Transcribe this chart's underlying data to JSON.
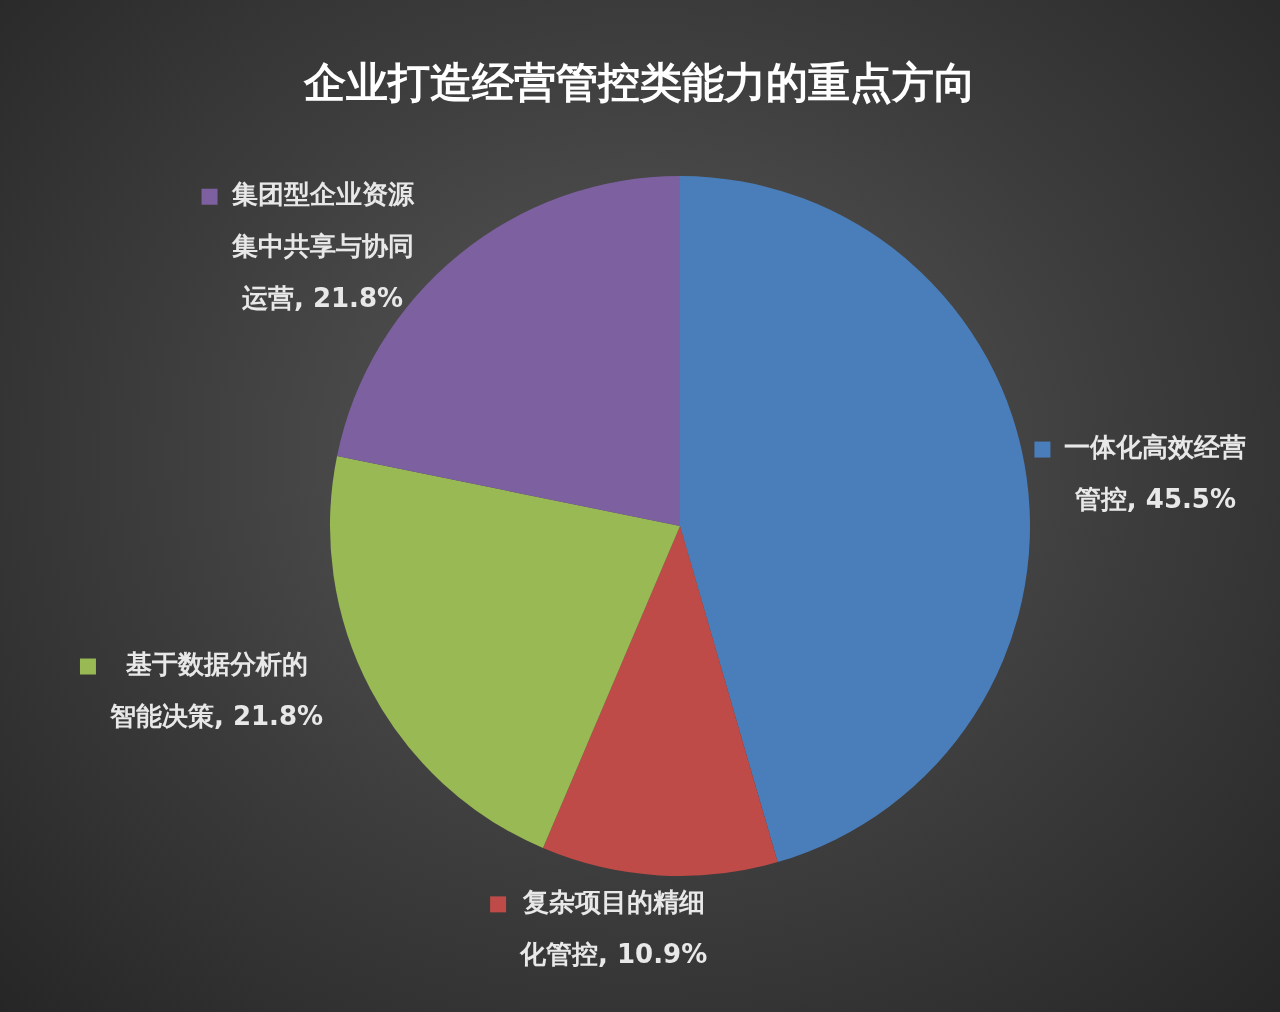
{
  "chart_data": {
    "type": "pie",
    "title": "企业打造经营管控类能力的重点方向",
    "categories": [
      "一体化高效经营管控",
      "复杂项目的精细化管控",
      "基于数据分析的智能决策",
      "集团型企业资源集中共享与协同运营"
    ],
    "values": [
      45.5,
      10.9,
      21.8,
      21.8
    ],
    "value_labels": [
      "45.5%",
      "10.9%",
      "21.8%",
      "21.8%"
    ],
    "colors": [
      "#4a7ebb",
      "#be4b48",
      "#98b954",
      "#7d60a0"
    ],
    "legend": "right"
  }
}
